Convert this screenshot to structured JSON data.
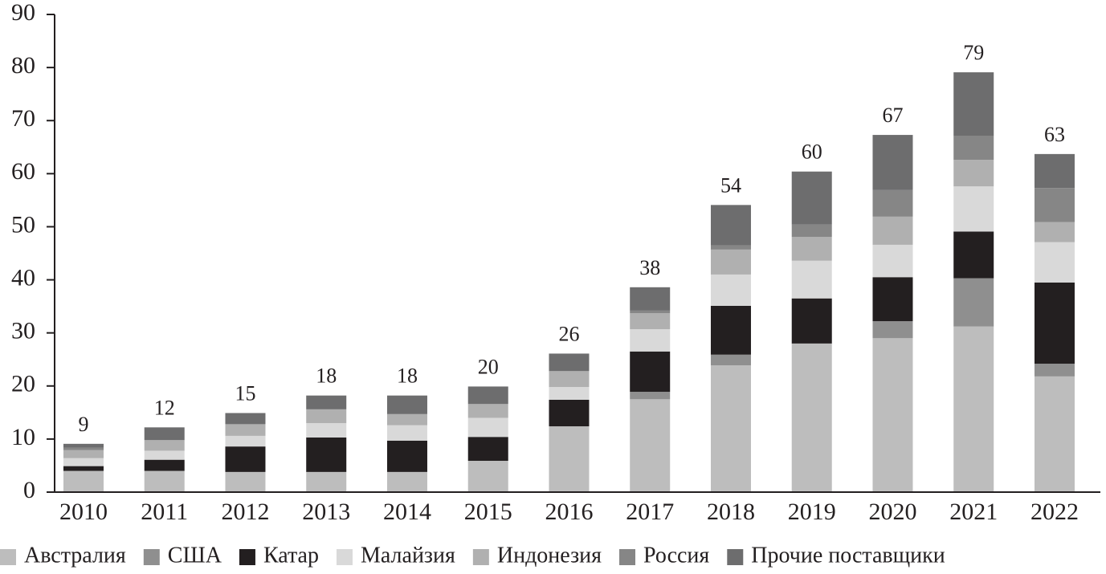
{
  "chart_data": {
    "type": "stacked_bar",
    "categories": [
      "2010",
      "2011",
      "2012",
      "2013",
      "2014",
      "2015",
      "2016",
      "2017",
      "2018",
      "2019",
      "2020",
      "2021",
      "2022"
    ],
    "series": [
      {
        "name": "Австралия",
        "color": "#bdbdbd",
        "values": [
          4.0,
          4.0,
          3.8,
          3.8,
          3.8,
          5.9,
          12.4,
          17.5,
          23.9,
          28.0,
          29.0,
          31.2,
          21.8
        ]
      },
      {
        "name": "США",
        "color": "#8f8f8f",
        "values": [
          0,
          0,
          0,
          0,
          0,
          0,
          0,
          1.4,
          2.0,
          0,
          3.2,
          9.1,
          2.4
        ]
      },
      {
        "name": "Катар",
        "color": "#231f20",
        "values": [
          0.9,
          2.1,
          4.8,
          6.5,
          5.9,
          4.5,
          5.0,
          7.6,
          9.2,
          8.5,
          8.3,
          8.8,
          15.3
        ]
      },
      {
        "name": "Малайзия",
        "color": "#d9d9d9",
        "values": [
          1.5,
          1.7,
          2.0,
          2.7,
          2.9,
          3.6,
          2.4,
          4.2,
          5.9,
          7.1,
          6.1,
          8.5,
          7.6
        ]
      },
      {
        "name": "Индонезия",
        "color": "#b0b0b0",
        "values": [
          1.5,
          2.0,
          2.2,
          2.6,
          2.1,
          2.6,
          3.0,
          3.0,
          4.7,
          4.5,
          5.3,
          5.0,
          3.8
        ]
      },
      {
        "name": "Россия",
        "color": "#868686",
        "values": [
          0.5,
          0,
          0,
          0,
          0,
          0,
          0,
          0.5,
          0.8,
          2.3,
          5.0,
          4.5,
          6.4
        ]
      },
      {
        "name": "Прочие поставщики",
        "color": "#6d6d6e",
        "values": [
          0.7,
          2.4,
          2.1,
          2.6,
          3.5,
          3.3,
          3.3,
          4.4,
          7.6,
          10.0,
          10.4,
          12.0,
          6.4
        ]
      }
    ],
    "totals": [
      9,
      12,
      15,
      18,
      18,
      20,
      26,
      38,
      54,
      60,
      67,
      79,
      63
    ],
    "ylim": [
      0,
      90
    ],
    "yticks": [
      0,
      10,
      20,
      30,
      40,
      50,
      60,
      70,
      80,
      90
    ],
    "grid": false,
    "legend": "bottom"
  }
}
